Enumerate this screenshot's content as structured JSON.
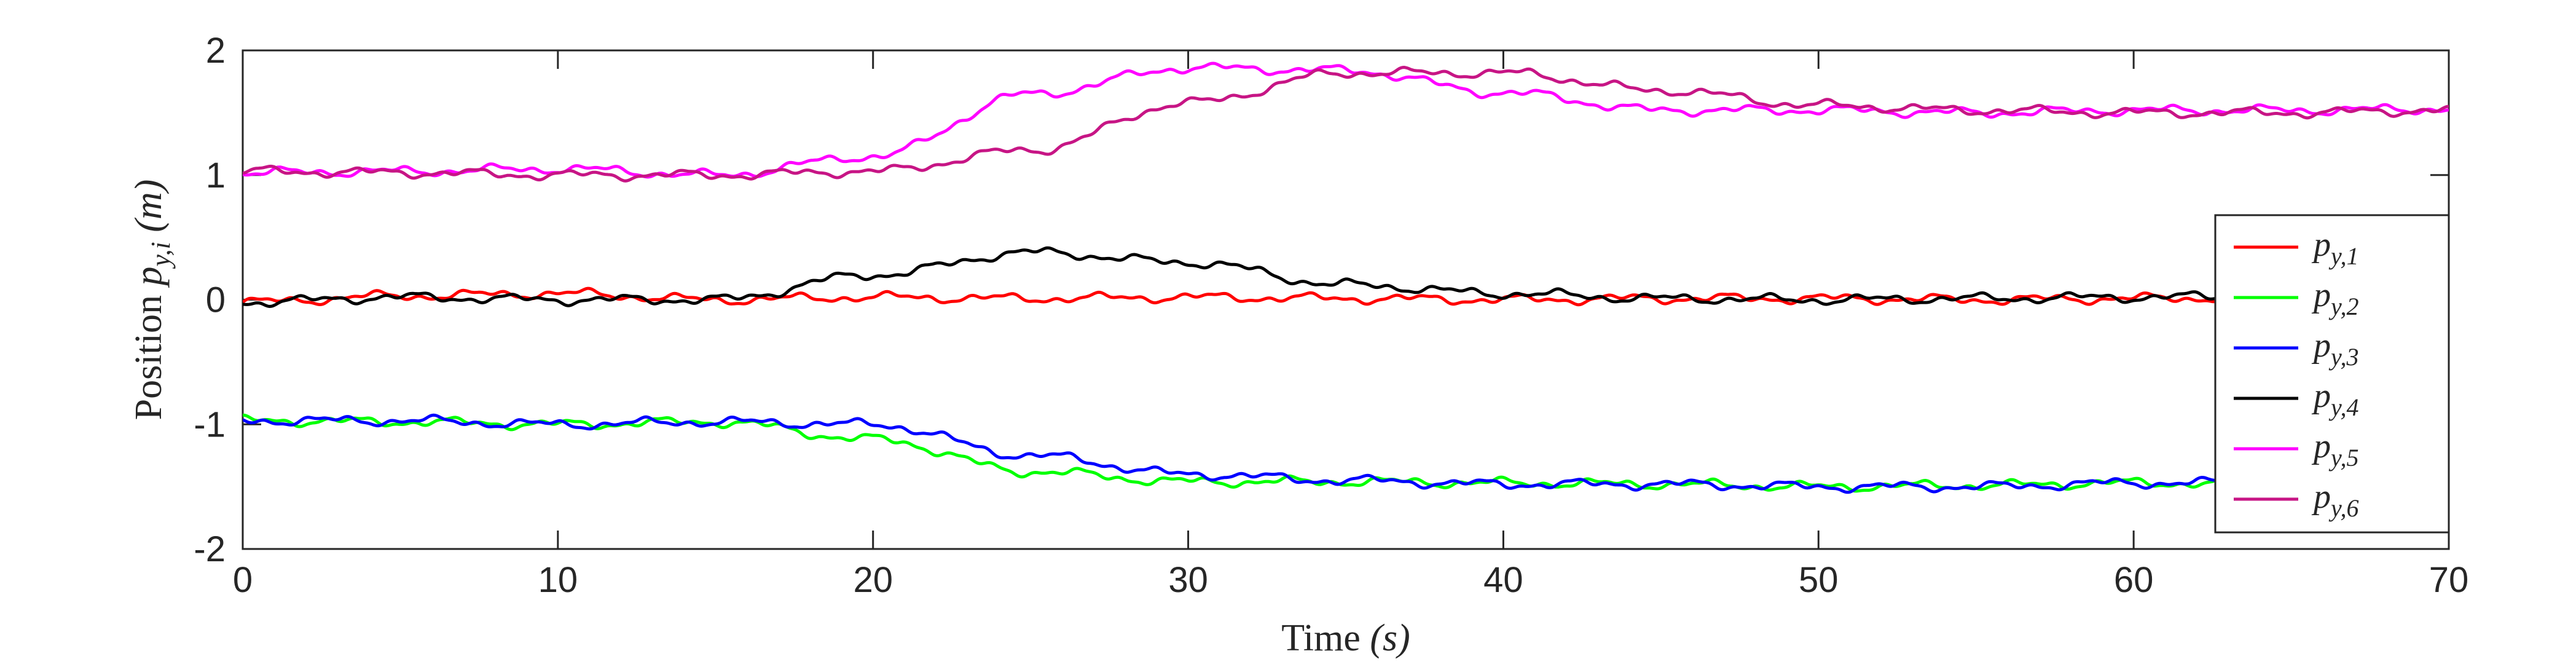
{
  "chart_data": {
    "type": "line",
    "xlabel": {
      "main": "Time",
      "unit": "(s)"
    },
    "ylabel": {
      "main": "Position",
      "symbol": "p",
      "sub": "y,i",
      "unit": "(m)"
    },
    "xlim": [
      0,
      70
    ],
    "ylim": [
      -2,
      2
    ],
    "x_ticks": [
      0,
      10,
      20,
      30,
      40,
      50,
      60,
      70
    ],
    "y_ticks": [
      2,
      1,
      0,
      -1,
      -2
    ],
    "grid": false,
    "legend_position": "right",
    "x": [
      0,
      5,
      10,
      15,
      20,
      25,
      30,
      35,
      40,
      45,
      50,
      55,
      60,
      65,
      70
    ],
    "series": [
      {
        "name_symbol": "p",
        "name_sub": "y,1",
        "color": "#ff0000",
        "values": [
          -0.02,
          0.03,
          0.05,
          0.0,
          0.02,
          0.01,
          0.02,
          0.01,
          0.0,
          0.01,
          0.01,
          0.0,
          0.01,
          0.02,
          0.02
        ]
      },
      {
        "name_symbol": "p",
        "name_sub": "y,2",
        "color": "#00ff00",
        "values": [
          -0.97,
          -0.98,
          -1.0,
          -0.98,
          -1.12,
          -1.38,
          -1.46,
          -1.46,
          -1.47,
          -1.48,
          -1.5,
          -1.49,
          -1.47,
          -1.48,
          -1.47
        ]
      },
      {
        "name_symbol": "p",
        "name_sub": "y,3",
        "color": "#0000ff",
        "values": [
          -0.97,
          -0.97,
          -1.0,
          -0.98,
          -1.0,
          -1.25,
          -1.4,
          -1.45,
          -1.48,
          -1.48,
          -1.5,
          -1.5,
          -1.47,
          -1.47,
          -1.47
        ]
      },
      {
        "name_symbol": "p",
        "name_sub": "y,4",
        "color": "#000000",
        "values": [
          -0.02,
          0.02,
          0.0,
          0.0,
          0.2,
          0.38,
          0.3,
          0.12,
          0.05,
          0.01,
          0.0,
          0.01,
          0.02,
          0.03,
          0.02
        ]
      },
      {
        "name_symbol": "p",
        "name_sub": "y,5",
        "color": "#ff00ff",
        "values": [
          1.02,
          1.03,
          1.05,
          1.0,
          1.15,
          1.65,
          1.86,
          1.84,
          1.66,
          1.52,
          1.52,
          1.5,
          1.52,
          1.52,
          1.53
        ]
      },
      {
        "name_symbol": "p",
        "name_sub": "y,6",
        "color": "#c71585",
        "values": [
          1.03,
          1.02,
          1.0,
          1.0,
          1.03,
          1.2,
          1.58,
          1.82,
          1.82,
          1.68,
          1.56,
          1.52,
          1.5,
          1.5,
          1.52
        ]
      }
    ]
  }
}
